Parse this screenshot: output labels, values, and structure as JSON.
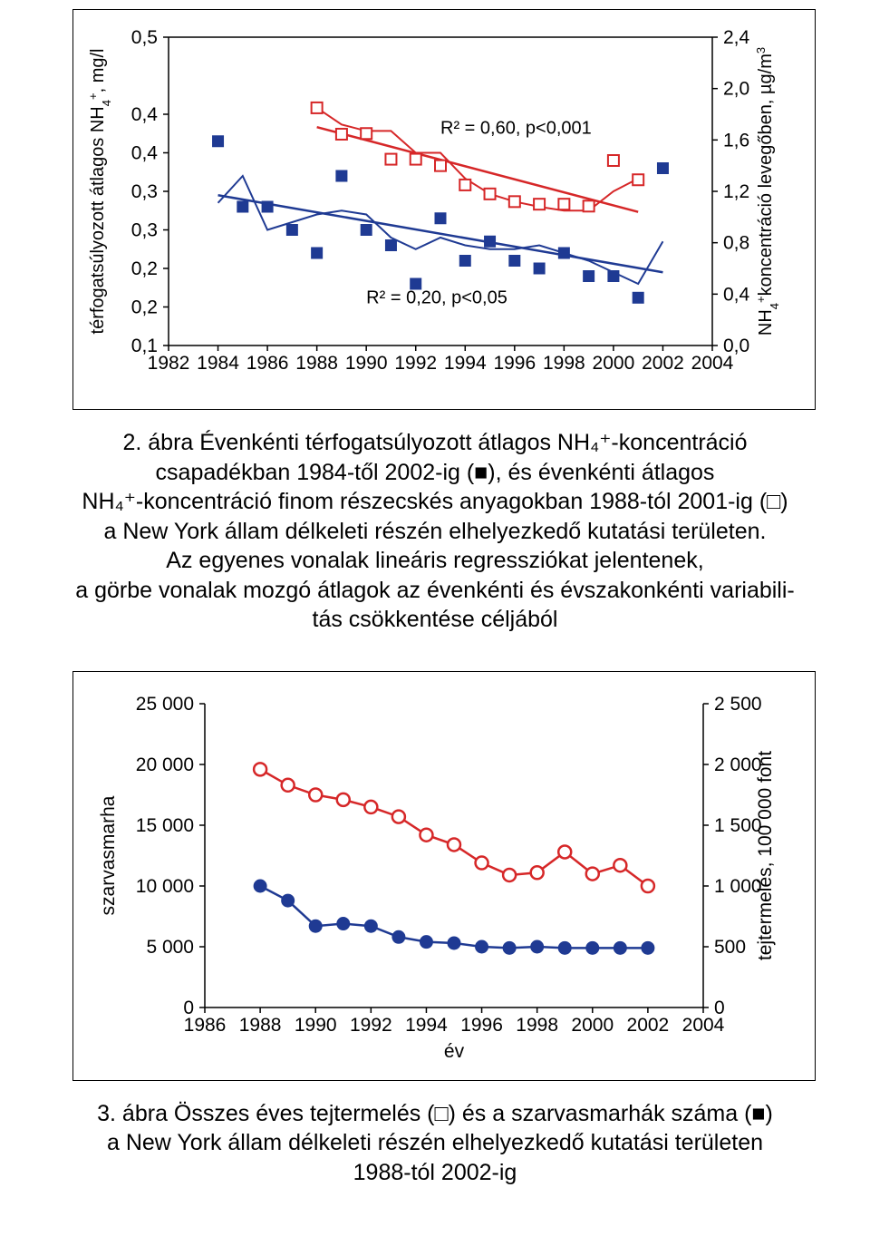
{
  "chart1": {
    "type": "scatter-line",
    "background_color": "#ffffff",
    "axis_color": "#000000",
    "font_family": "Arial",
    "tick_fontsize": 21,
    "label_fontsize": 20,
    "left_label": "térfogatsúlyozott átlagos NH₄⁺, mg/l",
    "right_label": "NH₄⁺koncentráció levegőben, µg/m³",
    "x_ticks": [
      1982,
      1984,
      1986,
      1988,
      1990,
      1992,
      1994,
      1996,
      1998,
      2000,
      2002,
      2004
    ],
    "y_left_ticks": [
      "0,1",
      "0,2",
      "0,2",
      "0,3",
      "0,3",
      "0,4",
      "0,4",
      "0,5"
    ],
    "y_left_values": [
      0.1,
      0.15,
      0.2,
      0.25,
      0.3,
      0.35,
      0.4,
      0.5
    ],
    "y_right_ticks": [
      "0,0",
      "0,4",
      "0,8",
      "1,2",
      "1,6",
      "2,0",
      "2,4"
    ],
    "anno1": "R² = 0,60, p<0,001",
    "anno2": "R² = 0,20, p<0,05",
    "series_blue": {
      "color": "#1f3a93",
      "marker": "filled-square",
      "marker_size": 12,
      "years": [
        1984,
        1985,
        1986,
        1987,
        1988,
        1989,
        1990,
        1991,
        1992,
        1993,
        1994,
        1995,
        1996,
        1997,
        1998,
        1999,
        2000,
        2001,
        2002
      ],
      "values": [
        0.365,
        0.28,
        0.28,
        0.25,
        0.22,
        0.32,
        0.25,
        0.23,
        0.18,
        0.265,
        0.21,
        0.235,
        0.21,
        0.2,
        0.22,
        0.19,
        0.19,
        0.162,
        0.33
      ]
    },
    "series_red": {
      "color": "#d62728",
      "marker": "open-square",
      "marker_size": 12,
      "years": [
        1988,
        1989,
        1990,
        1991,
        1992,
        1993,
        1994,
        1995,
        1996,
        1997,
        1998,
        1999,
        2000,
        2001
      ],
      "values_r": [
        1.85,
        1.645,
        1.65,
        1.45,
        1.45,
        1.4,
        1.25,
        1.18,
        1.12,
        1.1,
        1.1,
        1.085,
        1.44,
        1.29
      ]
    },
    "blue_trend_color": "#1f3a93",
    "red_trend_color": "#d62728",
    "blue_trend": [
      [
        1984,
        0.295
      ],
      [
        2002,
        0.195
      ]
    ],
    "red_trend": [
      [
        1988,
        1.7
      ],
      [
        2001,
        1.04
      ]
    ],
    "blue_wavy": [
      [
        1984,
        0.285
      ],
      [
        1985,
        0.32
      ],
      [
        1986,
        0.25
      ],
      [
        1987,
        0.26
      ],
      [
        1988,
        0.27
      ],
      [
        1989,
        0.275
      ],
      [
        1990,
        0.27
      ],
      [
        1991,
        0.24
      ],
      [
        1992,
        0.225
      ],
      [
        1993,
        0.24
      ],
      [
        1994,
        0.23
      ],
      [
        1995,
        0.225
      ],
      [
        1996,
        0.225
      ],
      [
        1997,
        0.23
      ],
      [
        1998,
        0.22
      ],
      [
        1999,
        0.21
      ],
      [
        2000,
        0.195
      ],
      [
        2001,
        0.18
      ],
      [
        2002,
        0.235
      ]
    ],
    "red_wavy": [
      [
        1988,
        1.85
      ],
      [
        1989,
        1.72
      ],
      [
        1990,
        1.67
      ],
      [
        1991,
        1.67
      ],
      [
        1992,
        1.5
      ],
      [
        1993,
        1.5
      ],
      [
        1994,
        1.3
      ],
      [
        1995,
        1.18
      ],
      [
        1996,
        1.12
      ],
      [
        1997,
        1.08
      ],
      [
        1998,
        1.05
      ],
      [
        1999,
        1.05
      ],
      [
        2000,
        1.2
      ],
      [
        2001,
        1.3
      ]
    ]
  },
  "caption1_lines": [
    "2. ábra Évenkénti térfogatsúlyozott átlagos NH₄⁺-koncentráció",
    "csapadékban 1984-től 2002-ig (■), és évenkénti átlagos",
    "NH₄⁺-koncentráció finom részecskés anyagokban 1988-tól 2001-ig (□)",
    "a New York állam délkeleti részén elhelyezkedő kutatási területen.",
    "Az egyenes vonalak lineáris regressziókat jelentenek,",
    "a görbe vonalak mozgó átlagok az évenkénti és évszakonkénti variabili-",
    "tás csökkentése céljából"
  ],
  "chart2": {
    "type": "line",
    "background_color": "#ffffff",
    "axis_color": "#000000",
    "left_label": "szarvasmarha",
    "right_label": "tejtermelés, 100 000 font",
    "x_label": "év",
    "x_ticks": [
      1986,
      1988,
      1990,
      1992,
      1994,
      1996,
      1998,
      2000,
      2002,
      2004
    ],
    "y_left_ticks": [
      "0",
      "5 000",
      "10 000",
      "15 000",
      "20 000",
      "25 000"
    ],
    "y_left_values": [
      0,
      5000,
      10000,
      15000,
      20000,
      25000
    ],
    "y_right_ticks": [
      "0",
      "500",
      "1 000",
      "1 500",
      "2 000",
      "2 500"
    ],
    "y_right_values": [
      0,
      500,
      1000,
      1500,
      2000,
      2500
    ],
    "series_blue": {
      "color": "#1f3a93",
      "marker": "filled-circle",
      "marker_size": 7,
      "years": [
        1988,
        1989,
        1990,
        1991,
        1992,
        1993,
        1994,
        1995,
        1996,
        1997,
        1998,
        1999,
        2000,
        2001,
        2002
      ],
      "values": [
        10000,
        8800,
        6700,
        6900,
        6700,
        5800,
        5400,
        5300,
        5000,
        4900,
        5000,
        4900,
        4900,
        4900,
        4900
      ]
    },
    "series_red": {
      "color": "#d62728",
      "marker": "open-circle",
      "marker_size": 7,
      "years": [
        1988,
        1989,
        1990,
        1991,
        1992,
        1993,
        1994,
        1995,
        1996,
        1997,
        1998,
        1999,
        2000,
        2001,
        2002
      ],
      "values_r": [
        1960,
        1830,
        1750,
        1710,
        1650,
        1570,
        1420,
        1340,
        1190,
        1090,
        1110,
        1280,
        1100,
        1170,
        1000
      ]
    }
  },
  "caption2_lines": [
    "3. ábra Összes éves tejtermelés (□) és a szarvasmarhák száma (■)",
    "a New York állam délkeleti részén elhelyezkedő kutatási területen",
    "1988-tól 2002-ig"
  ]
}
